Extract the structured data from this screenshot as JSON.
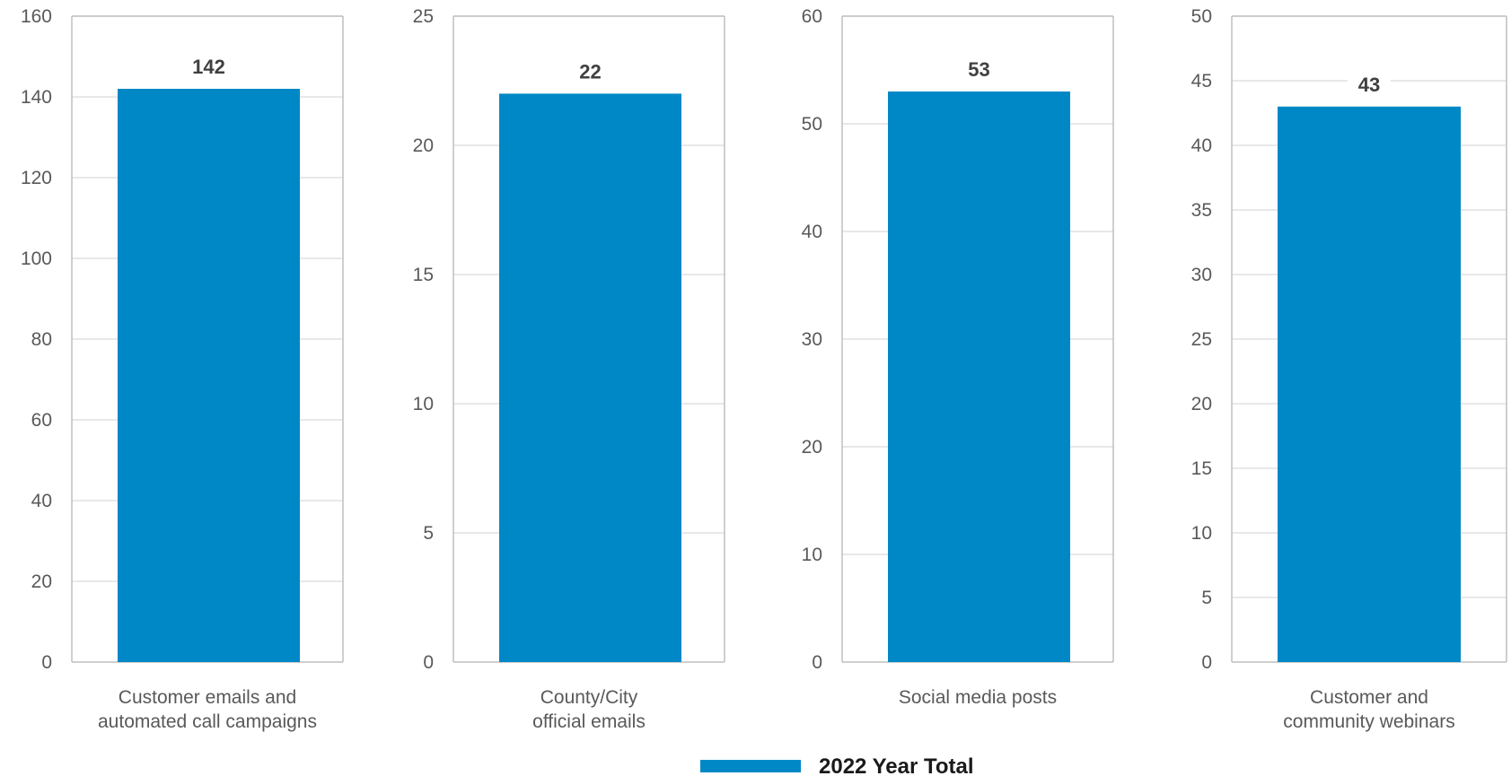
{
  "chart_data": [
    {
      "type": "bar",
      "categories": [
        "Customer emails and automated call campaigns"
      ],
      "category_lines": [
        "Customer emails and",
        "automated call campaigns"
      ],
      "series": [
        {
          "name": "2022 Year Total",
          "values": [
            142
          ]
        }
      ],
      "ylim": [
        0,
        160
      ],
      "yticks": [
        0,
        20,
        40,
        60,
        80,
        100,
        120,
        140,
        160
      ],
      "grid": true
    },
    {
      "type": "bar",
      "categories": [
        "County/City official emails"
      ],
      "category_lines": [
        "County/City",
        "official emails"
      ],
      "series": [
        {
          "name": "2022 Year Total",
          "values": [
            22
          ]
        }
      ],
      "ylim": [
        0,
        25
      ],
      "yticks": [
        0,
        5,
        10,
        15,
        20,
        25
      ],
      "grid": true
    },
    {
      "type": "bar",
      "categories": [
        "Social media posts"
      ],
      "category_lines": [
        "Social media posts"
      ],
      "series": [
        {
          "name": "2022 Year Total",
          "values": [
            53
          ]
        }
      ],
      "ylim": [
        0,
        60
      ],
      "yticks": [
        0,
        10,
        20,
        30,
        40,
        50,
        60
      ],
      "grid": true
    },
    {
      "type": "bar",
      "categories": [
        "Customer and community webinars"
      ],
      "category_lines": [
        "Customer and",
        "community webinars"
      ],
      "series": [
        {
          "name": "2022 Year Total",
          "values": [
            43
          ]
        }
      ],
      "ylim": [
        0,
        50
      ],
      "yticks": [
        0,
        5,
        10,
        15,
        20,
        25,
        30,
        35,
        40,
        45,
        50
      ],
      "grid": true
    }
  ],
  "legend": {
    "label": "2022 Year Total",
    "position": "bottom-center"
  },
  "colors": {
    "bar": "#0088C6",
    "grid": "#D9D9D9",
    "axis": "#BFBFBF"
  }
}
